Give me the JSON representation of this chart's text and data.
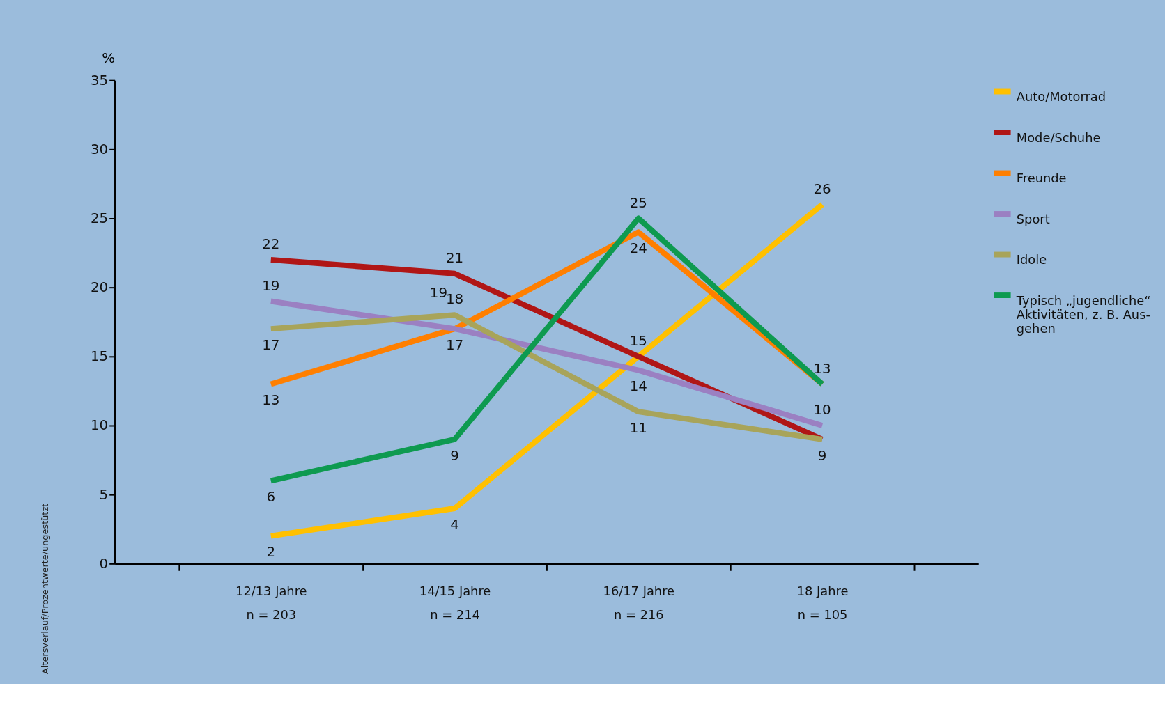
{
  "chart_data": {
    "type": "line",
    "ylabel": "%",
    "categories": [
      "12/13 Jahre\nn = 203",
      "14/15 Jahre\nn = 214",
      "16/17 Jahre\nn = 216",
      "18 Jahre\nn = 105"
    ],
    "ylim": [
      0,
      35
    ],
    "yticks": [
      0,
      5,
      10,
      15,
      20,
      25,
      30,
      35
    ],
    "grid": false,
    "legend": "right",
    "marker": "none",
    "line_style": "solid",
    "series": [
      {
        "name": "Auto/Motorrad",
        "color": "#ffc000",
        "values": [
          2,
          4,
          15,
          26
        ],
        "value_labels": [
          "2",
          "4",
          null,
          "26"
        ]
      },
      {
        "name": "Mode/Schuhe",
        "color": "#b01616",
        "values": [
          22,
          21,
          15,
          9
        ],
        "value_labels": [
          "22",
          "21",
          "15",
          "9"
        ]
      },
      {
        "name": "Freunde",
        "color": "#ff7f00",
        "values": [
          13,
          17,
          24,
          13
        ],
        "value_labels": [
          "13",
          "17",
          "24",
          null
        ]
      },
      {
        "name": "Sport",
        "color": "#9b80c2",
        "values": [
          19,
          17,
          14,
          10
        ],
        "value_labels": [
          "19",
          null,
          "14",
          "10"
        ]
      },
      {
        "name": "Idole",
        "color": "#a8a45a",
        "values": [
          17,
          18,
          11,
          9
        ],
        "value_labels": [
          "17",
          "18",
          "11",
          null
        ]
      },
      {
        "name": "Typisch „jugendliche“\nAktivitäten, z. B. Aus-\ngehen",
        "color": "#0e9a50",
        "values": [
          6,
          9,
          25,
          13
        ],
        "value_labels": [
          "6",
          "9",
          "25",
          "13"
        ]
      }
    ],
    "annotations": [
      "19",
      "Altersverlauf/Prozentwerte/ungestützt"
    ]
  }
}
